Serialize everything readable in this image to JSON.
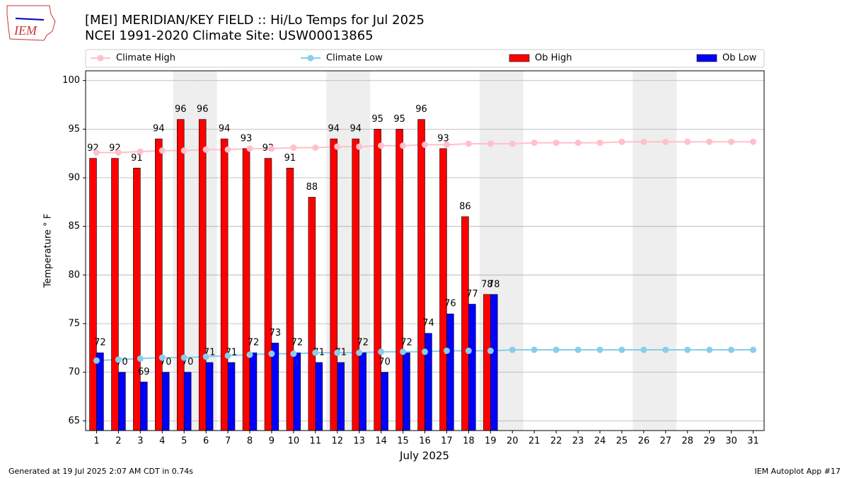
{
  "chart_data": {
    "type": "bar",
    "title": "[MEI] MERIDIAN/KEY FIELD :: Hi/Lo Temps for Jul 2025",
    "subtitle": "NCEI 1991-2020 Climate Site: USW00013865",
    "logo_text": "IEM",
    "xlabel": "July 2025",
    "ylabel": "Temperature ° F",
    "footer_left": "Generated at 19 Jul 2025 2:07 AM CDT in 0.74s",
    "footer_right": "IEM Autoplot App #17",
    "categories": [
      "1",
      "2",
      "3",
      "4",
      "5",
      "6",
      "7",
      "8",
      "9",
      "10",
      "11",
      "12",
      "13",
      "14",
      "15",
      "16",
      "17",
      "18",
      "19",
      "20",
      "21",
      "22",
      "23",
      "24",
      "25",
      "26",
      "27",
      "28",
      "29",
      "30",
      "31"
    ],
    "highlight_days": [
      4,
      5,
      11,
      12,
      18,
      19,
      25,
      26
    ],
    "highlight_color": "#eeeeee",
    "series": [
      {
        "name": "Climate High",
        "type": "line",
        "color": "#ffc0cb",
        "values": [
          92.6,
          92.6,
          92.7,
          92.8,
          92.8,
          92.9,
          92.9,
          93.0,
          93.0,
          93.1,
          93.1,
          93.2,
          93.2,
          93.3,
          93.3,
          93.4,
          93.4,
          93.5,
          93.5,
          93.5,
          93.6,
          93.6,
          93.6,
          93.6,
          93.7,
          93.7,
          93.7,
          93.7,
          93.7,
          93.7,
          93.7
        ]
      },
      {
        "name": "Climate Low",
        "type": "line",
        "color": "#87ceeb",
        "values": [
          71.2,
          71.3,
          71.4,
          71.5,
          71.5,
          71.6,
          71.7,
          71.8,
          71.9,
          71.9,
          72.0,
          72.0,
          72.0,
          72.1,
          72.1,
          72.1,
          72.2,
          72.2,
          72.2,
          72.3,
          72.3,
          72.3,
          72.3,
          72.3,
          72.3,
          72.3,
          72.3,
          72.3,
          72.3,
          72.3,
          72.3
        ]
      },
      {
        "name": "Ob High",
        "type": "bar",
        "color": "#ff0000",
        "values": [
          92,
          92,
          91,
          94,
          96,
          96,
          94,
          93,
          92,
          91,
          88,
          94,
          94,
          95,
          95,
          96,
          93,
          86,
          78,
          null,
          null,
          null,
          null,
          null,
          null,
          null,
          null,
          null,
          null,
          null,
          null
        ]
      },
      {
        "name": "Ob Low",
        "type": "bar",
        "color": "#0000ff",
        "values": [
          72,
          70,
          69,
          70,
          70,
          71,
          71,
          72,
          73,
          72,
          71,
          71,
          72,
          70,
          72,
          74,
          76,
          77,
          78,
          null,
          null,
          null,
          null,
          null,
          null,
          null,
          null,
          null,
          null,
          null,
          null
        ]
      }
    ],
    "ylim": [
      64,
      101
    ],
    "yticks": [
      65,
      70,
      75,
      80,
      85,
      90,
      95,
      100
    ],
    "grid": true
  }
}
